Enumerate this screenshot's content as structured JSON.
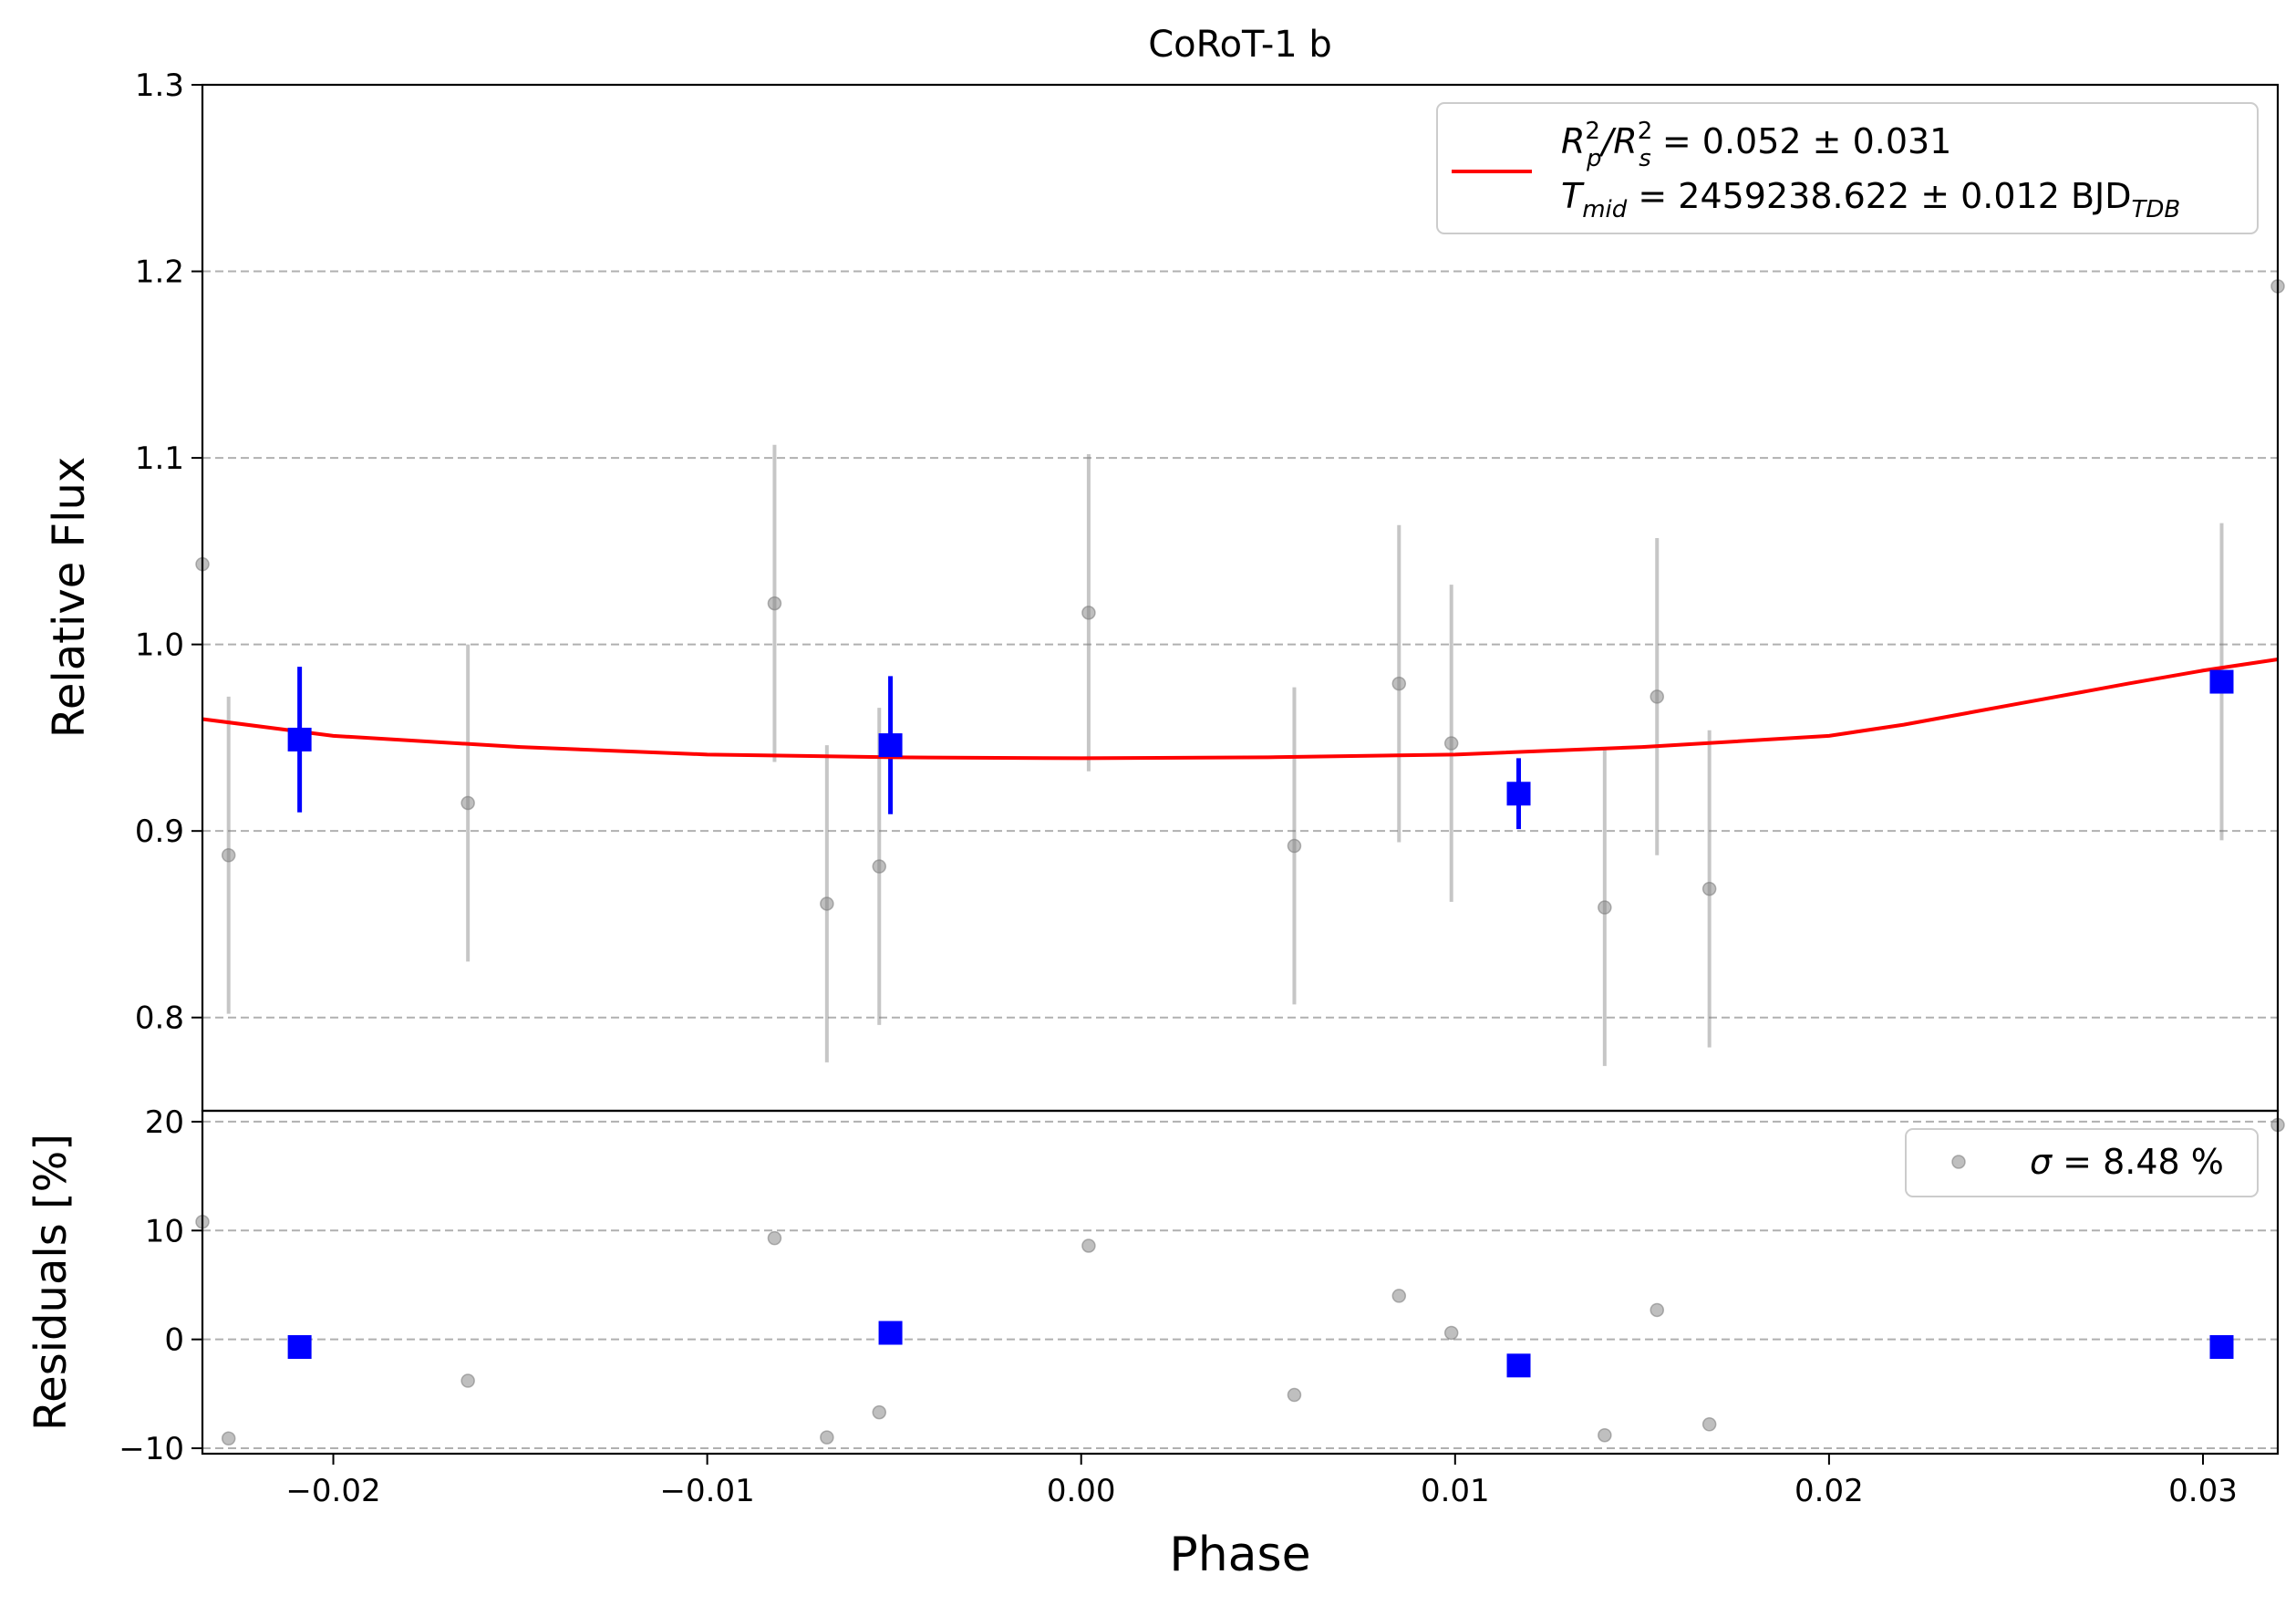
{
  "chart_data": {
    "type": "scatter",
    "title": "CoRoT-1 b",
    "xlabel": "Phase",
    "x_ticks": [
      "−0.02",
      "−0.01",
      "0.00",
      "0.01",
      "0.02",
      "0.03"
    ],
    "x_tick_values": [
      -0.02,
      -0.01,
      0.0,
      0.01,
      0.02,
      0.03
    ],
    "xlim": [
      -0.0235,
      0.032
    ],
    "grid": "horizontal dashed",
    "panels": [
      {
        "name": "flux",
        "ylabel": "Relative Flux",
        "ylim": [
          0.75,
          1.3
        ],
        "y_ticks": [
          "0.8",
          "0.9",
          "1.0",
          "1.1",
          "1.2",
          "1.3"
        ],
        "y_tick_values": [
          0.8,
          0.9,
          1.0,
          1.1,
          1.2,
          1.3
        ],
        "legend": {
          "placement": "upper right",
          "entry_line1": {
            "base": "R",
            "sup1": "2",
            "sub1": "p",
            "slash": "/R",
            "sup2": "2",
            "sub2": "s",
            "value": " = 0.052 ± 0.031"
          },
          "entry_line2": {
            "base": "T",
            "sub": "mid",
            "value": " = 2459238.622 ± 0.012 BJD",
            "unit_sub": "TDB"
          }
        },
        "series": [
          {
            "kind": "raw",
            "color": "#808080",
            "points": [
              {
                "x": -0.0235,
                "y": 1.043
              },
              {
                "x": -0.0228,
                "y": 0.887,
                "err": 0.085
              },
              {
                "x": -0.0164,
                "y": 0.915,
                "err": 0.085
              },
              {
                "x": -0.0082,
                "y": 1.022,
                "err": 0.085
              },
              {
                "x": -0.0068,
                "y": 0.861,
                "err": 0.085
              },
              {
                "x": -0.0054,
                "y": 0.881,
                "err": 0.085
              },
              {
                "x": 0.0002,
                "y": 1.017,
                "err": 0.085
              },
              {
                "x": 0.0057,
                "y": 0.892,
                "err": 0.085
              },
              {
                "x": 0.0085,
                "y": 0.979,
                "err": 0.085
              },
              {
                "x": 0.0099,
                "y": 0.947,
                "err": 0.085
              },
              {
                "x": 0.014,
                "y": 0.859,
                "err": 0.085
              },
              {
                "x": 0.0154,
                "y": 0.972,
                "err": 0.085
              },
              {
                "x": 0.0168,
                "y": 0.869,
                "err": 0.085
              },
              {
                "x": 0.0305,
                "y": 0.98,
                "err": 0.085
              },
              {
                "x": 0.032,
                "y": 1.192
              }
            ]
          },
          {
            "kind": "binned",
            "color": "#0000ff",
            "points": [
              {
                "x": -0.0209,
                "y": 0.949,
                "err": 0.039
              },
              {
                "x": -0.0051,
                "y": 0.946,
                "err": 0.037
              },
              {
                "x": 0.0117,
                "y": 0.92,
                "err": 0.019
              },
              {
                "x": 0.0305,
                "y": 0.98,
                "err": 0.0
              }
            ]
          },
          {
            "kind": "model",
            "color": "#ff0000",
            "x": [
              -0.0235,
              -0.02,
              -0.015,
              -0.01,
              -0.005,
              0.0,
              0.005,
              0.01,
              0.015,
              0.02,
              0.022,
              0.025,
              0.028,
              0.03,
              0.032
            ],
            "y": [
              0.96,
              0.951,
              0.945,
              0.941,
              0.9395,
              0.939,
              0.9395,
              0.941,
              0.945,
              0.951,
              0.957,
              0.968,
              0.979,
              0.986,
              0.992
            ]
          }
        ]
      },
      {
        "name": "residuals",
        "ylabel": "Residuals [%]",
        "ylim": [
          -10.5,
          21
        ],
        "y_ticks": [
          "−10",
          "0",
          "10",
          "20"
        ],
        "y_tick_values": [
          -10,
          0,
          10,
          20
        ],
        "legend": {
          "placement": "upper right",
          "sigma_symbol": "σ",
          "value": " = 8.48 %"
        },
        "series": [
          {
            "kind": "raw",
            "color": "#808080",
            "points": [
              {
                "x": -0.0235,
                "y": 10.8
              },
              {
                "x": -0.0228,
                "y": -9.1
              },
              {
                "x": -0.0164,
                "y": -3.8
              },
              {
                "x": -0.0082,
                "y": 9.3
              },
              {
                "x": -0.0068,
                "y": -9.0
              },
              {
                "x": -0.0054,
                "y": -6.7
              },
              {
                "x": 0.0002,
                "y": 8.6
              },
              {
                "x": 0.0057,
                "y": -5.1
              },
              {
                "x": 0.0085,
                "y": 4.0
              },
              {
                "x": 0.0099,
                "y": 0.6
              },
              {
                "x": 0.014,
                "y": -8.8
              },
              {
                "x": 0.0154,
                "y": 2.7
              },
              {
                "x": 0.0168,
                "y": -7.8
              },
              {
                "x": 0.032,
                "y": 19.7
              }
            ]
          },
          {
            "kind": "binned",
            "color": "#0000ff",
            "points": [
              {
                "x": -0.0209,
                "y": -0.7
              },
              {
                "x": -0.0051,
                "y": 0.6
              },
              {
                "x": 0.0117,
                "y": -2.4
              },
              {
                "x": 0.0305,
                "y": -0.7
              }
            ]
          }
        ]
      }
    ]
  }
}
